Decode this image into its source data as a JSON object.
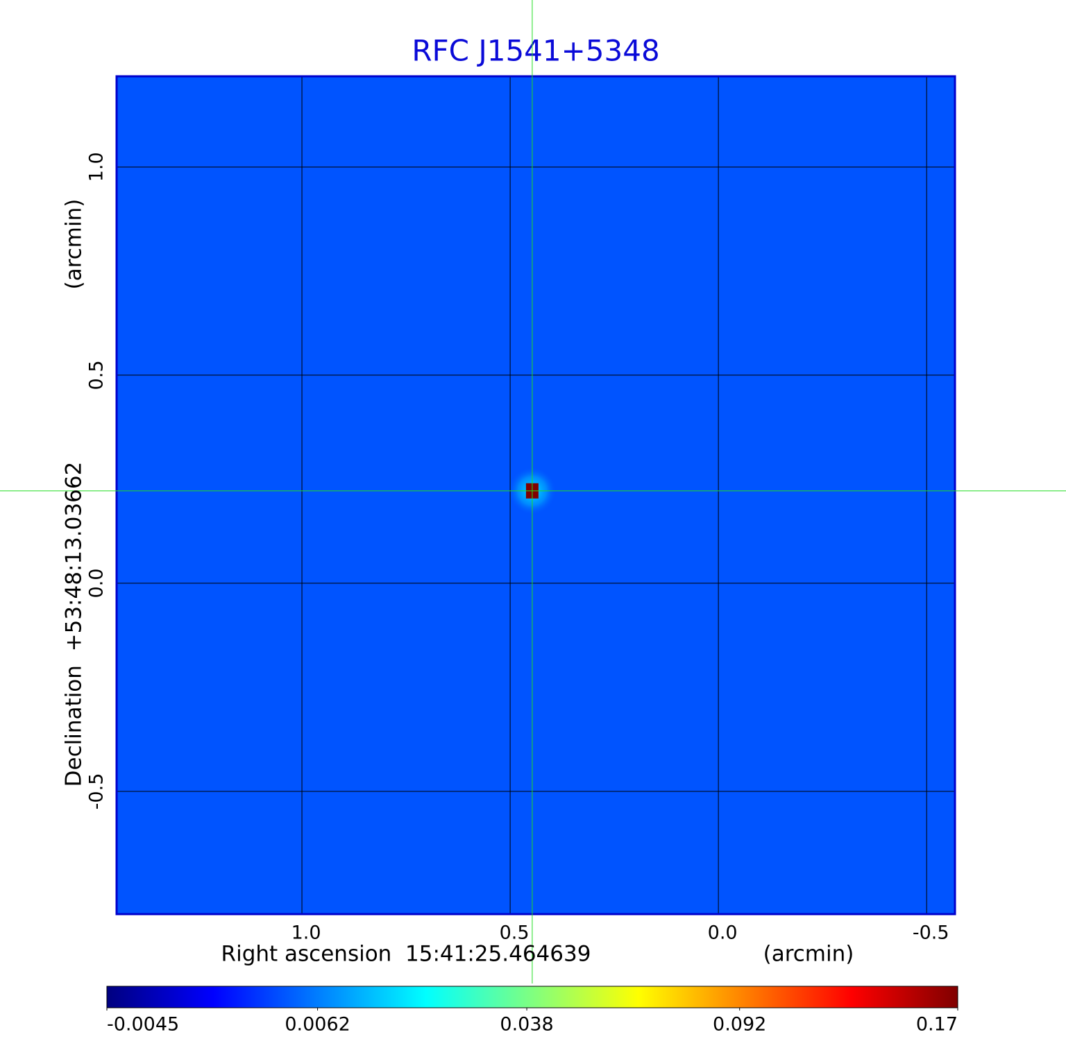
{
  "chart_data": {
    "type": "image",
    "title": "RFC J1541+5348",
    "x_label": "Right ascension  15:41:25.464639",
    "x_unit": "(arcmin)",
    "y_label": "Declination  +53:48:13.03662",
    "y_unit": "(arcmin)",
    "xlim": [
      1.445,
      -0.568
    ],
    "ylim": [
      -0.795,
      1.218
    ],
    "xticks": [
      {
        "value": 1,
        "label": "1.0"
      },
      {
        "value": 0.5,
        "label": "0.5"
      },
      {
        "value": 0,
        "label": "0.0"
      },
      -0.5
    ],
    "yticks": [
      {
        "value": 1,
        "label": "1.0"
      },
      {
        "value": 0.5,
        "label": "0.5"
      },
      {
        "value": 0,
        "label": "0.0"
      },
      -0.5
    ],
    "grid": true,
    "colormap": "jet",
    "colorbar_scale": "sqrt",
    "colorbar_lim": [
      -0.0045,
      0.17
    ],
    "colorbar_ticks": [
      -0.0045,
      0.0062,
      0.038,
      0.092,
      0.17
    ],
    "background_value": 0.003,
    "peak": {
      "x": 0.447,
      "y": 0.222,
      "value": 0.17
    }
  }
}
